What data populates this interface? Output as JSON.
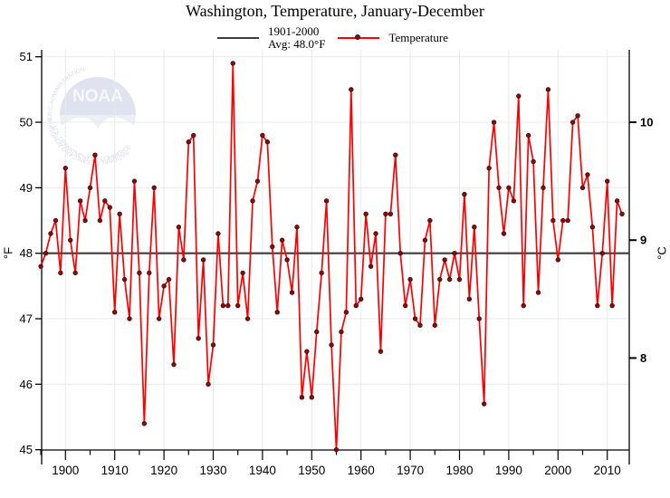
{
  "title": "Washington, Temperature, January-December",
  "legend": {
    "avg_label_line1": "1901-2000",
    "avg_label_line2": "Avg: 48.0°F",
    "series_label": "Temperature"
  },
  "axes": {
    "left_label": "°F",
    "right_label": "°C",
    "left_ticks": [
      45,
      46,
      47,
      48,
      49,
      50,
      51
    ],
    "right_ticks_c": [
      8,
      9,
      10
    ],
    "x_ticks": [
      1900,
      1910,
      1920,
      1930,
      1940,
      1950,
      1960,
      1970,
      1980,
      1990,
      2000,
      2010
    ]
  },
  "logo": {
    "text_top": "NATIONAL OCEANIC AND ATMOSPHERIC ADMINISTRATION",
    "text_bottom": "U.S. DEPARTMENT OF COMMERCE",
    "text_center": "NOAA"
  },
  "colors": {
    "series_line": "#fe0000",
    "marker_fill": "#a50000",
    "marker_edge": "#1a1a1a",
    "avg_line": "#3c3c3c",
    "grid": "#e9e9e9",
    "axis": "#000000",
    "logo_circle": "#c6cbe3",
    "logo_lower": "#dce4f0",
    "logo_text": "#b2b7d6"
  },
  "chart_data": {
    "type": "line",
    "title": "Washington, Temperature, January-December",
    "ylabel": "°F",
    "y2label": "°C",
    "ylim_f": [
      45,
      51
    ],
    "xlim": [
      1895,
      2014.5
    ],
    "grid": true,
    "legend_position": "top",
    "average_line": {
      "label": "1901-2000 Avg",
      "value_f": 48.0
    },
    "year_start": 1895,
    "year_end": 2013,
    "values_f": [
      47.8,
      48.0,
      48.3,
      48.5,
      47.7,
      49.3,
      48.2,
      47.7,
      48.8,
      48.5,
      49.0,
      49.5,
      48.5,
      48.8,
      48.7,
      47.1,
      48.6,
      47.6,
      47.0,
      49.1,
      47.7,
      45.4,
      47.7,
      49.0,
      47.0,
      47.5,
      47.6,
      46.3,
      48.4,
      47.9,
      49.7,
      49.8,
      46.7,
      47.9,
      46.0,
      46.6,
      48.3,
      47.2,
      47.2,
      50.9,
      47.2,
      47.7,
      47.0,
      48.8,
      49.1,
      49.8,
      49.7,
      48.1,
      47.1,
      48.2,
      47.9,
      47.4,
      48.4,
      45.8,
      46.5,
      45.8,
      46.8,
      47.7,
      48.8,
      46.6,
      45.0,
      46.8,
      47.1,
      50.5,
      47.2,
      47.3,
      48.6,
      47.8,
      48.3,
      46.5,
      48.6,
      48.6,
      49.5,
      48.0,
      47.2,
      47.6,
      47.0,
      46.9,
      48.2,
      48.5,
      46.9,
      47.6,
      47.9,
      47.6,
      48.0,
      47.6,
      48.9,
      47.3,
      48.4,
      47.0,
      45.7,
      49.3,
      50.0,
      49.0,
      48.3,
      49.0,
      48.8,
      50.4,
      47.2,
      49.8,
      49.4,
      47.4,
      49.0,
      50.5,
      48.5,
      47.9,
      48.5,
      48.5,
      50.0,
      50.1,
      49.0,
      49.2,
      48.4,
      47.2,
      48.0,
      49.1,
      47.2,
      48.8,
      48.6
    ]
  }
}
